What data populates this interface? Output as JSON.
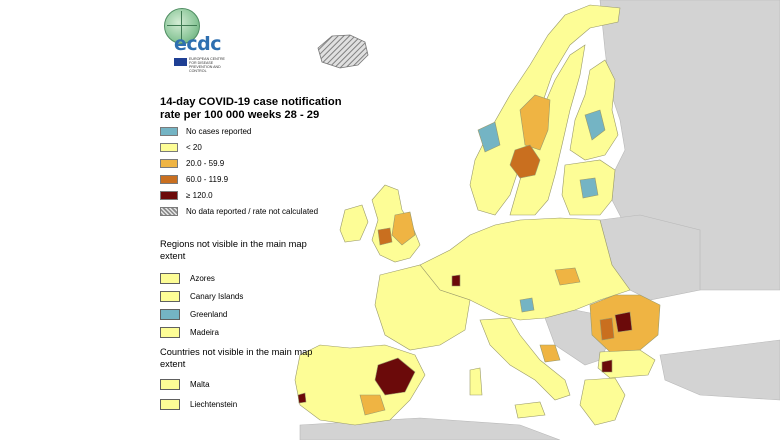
{
  "colors": {
    "sea": "#ffffff",
    "non_eu": "#d3d3d3",
    "no_cases": "#74b4c4",
    "lt20": "#fdfd96",
    "r20_60": "#efb443",
    "r60_120": "#c96f1f",
    "ge120": "#6b0a0a",
    "no_data": "hatched-grey",
    "border": "#9a9a6a"
  },
  "logo": {
    "wordmark": "ecdc",
    "subtitle": "EUROPEAN CENTRE FOR DISEASE PREVENTION AND CONTROL",
    "icon": "globe-icon"
  },
  "map_title": "14-day COVID-19 case notification rate per 100 000 weeks 28 - 29",
  "legend": [
    {
      "label": "No cases reported",
      "color_key": "no_cases"
    },
    {
      "label": "< 20",
      "color_key": "lt20"
    },
    {
      "label": "20.0 - 59.9",
      "color_key": "r20_60"
    },
    {
      "label": "60.0 - 119.9",
      "color_key": "r60_120"
    },
    {
      "label": "≥ 120.0",
      "color_key": "ge120"
    },
    {
      "label": "No data reported / rate not calculated",
      "color_key": "no_data"
    }
  ],
  "regions_title": "Regions not visible in the main map extent",
  "regions": [
    {
      "label": "Azores",
      "color_key": "lt20"
    },
    {
      "label": "Canary Islands",
      "color_key": "lt20"
    },
    {
      "label": "Greenland",
      "color_key": "no_cases"
    },
    {
      "label": "Madeira",
      "color_key": "lt20"
    }
  ],
  "countries_title": "Countries not visible in the main map extent",
  "countries": [
    {
      "label": "Malta",
      "color_key": "lt20"
    },
    {
      "label": "Liechtenstein",
      "color_key": "lt20"
    }
  ],
  "map_regions": [
    {
      "name": "Iberia",
      "category": "lt20"
    },
    {
      "name": "East Spain",
      "category": "ge120"
    },
    {
      "name": "Lisbon",
      "category": "ge120"
    },
    {
      "name": "France",
      "category": "lt20"
    },
    {
      "name": "Luxembourg",
      "category": "ge120"
    },
    {
      "name": "UK",
      "category": "lt20"
    },
    {
      "name": "Ireland",
      "category": "lt20"
    },
    {
      "name": "Iceland",
      "category": "no_data"
    },
    {
      "name": "Norway",
      "category": "lt20"
    },
    {
      "name": "Sweden",
      "category": "lt20"
    },
    {
      "name": "Finland",
      "category": "lt20"
    },
    {
      "name": "Baltics",
      "category": "lt20"
    },
    {
      "name": "Central Europe",
      "category": "lt20"
    },
    {
      "name": "Italy",
      "category": "lt20"
    },
    {
      "name": "Romania",
      "category": "r20_60"
    },
    {
      "name": "Bulgaria",
      "category": "lt20"
    },
    {
      "name": "Greece",
      "category": "lt20"
    }
  ]
}
